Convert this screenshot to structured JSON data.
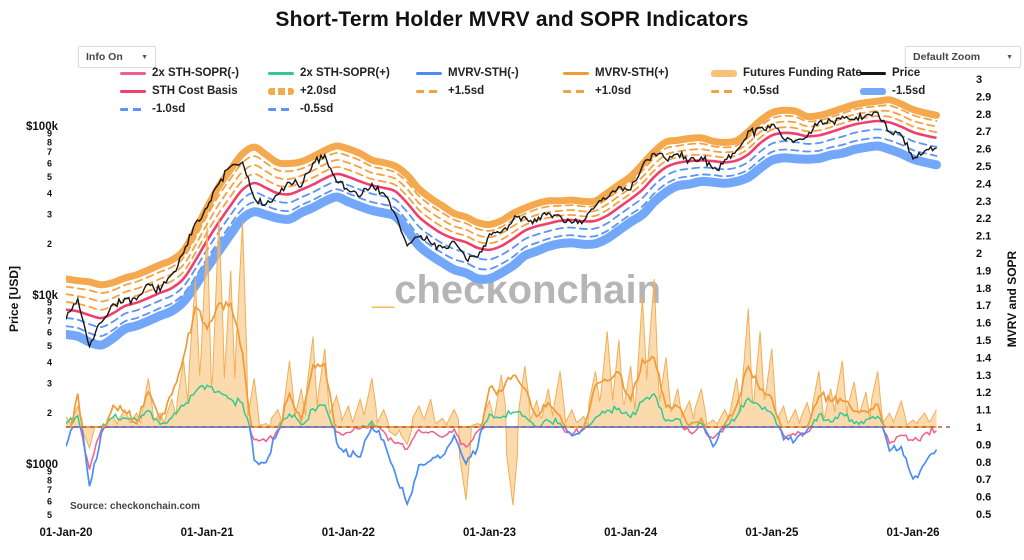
{
  "title": "Short-Term Holder MVRV and SOPR Indicators",
  "controls": {
    "info": {
      "label": "Info On",
      "caret": "▼"
    },
    "zoom": {
      "label": "Default Zoom",
      "caret": "▼"
    }
  },
  "watermark": {
    "underscore": "_",
    "text": "checkonchain"
  },
  "source": "Source: checkonchain.com",
  "colors": {
    "sopr_neg": "#f0608d",
    "sopr_pos": "#36c98e",
    "mvrv_neg": "#4b8df8",
    "mvrv_pos": "#f09a38",
    "funding_fill": "#f8c57d",
    "funding_edge": "#f2ae55",
    "price": "#161616",
    "cost_basis": "#ee3f6f",
    "band_orange_thick": "#f5a94e",
    "band_orange_dash": "#f5a142",
    "band_blue_thick": "#72a7fa",
    "band_blue_dash": "#5b93f7",
    "baseline_dash": "#c05a45",
    "watermark_gray": "#b5b5b5",
    "watermark_orange": "#fbbc55"
  },
  "legend": {
    "rows": [
      [
        {
          "label": "2x STH-SOPR(-)",
          "swatch": "line",
          "color": "#f0608d"
        },
        {
          "label": "2x STH-SOPR(+)",
          "swatch": "line",
          "color": "#36c98e"
        },
        {
          "label": "MVRV-STH(-)",
          "swatch": "line",
          "color": "#4b8df8"
        },
        {
          "label": "MVRV-STH(+)",
          "swatch": "line",
          "color": "#f09a38"
        },
        {
          "label": "Futures Funding Rate",
          "swatch": "thick",
          "color": "#f6c17a"
        },
        {
          "label": "Price",
          "swatch": "line",
          "color": "#161616"
        }
      ],
      [
        {
          "label": "STH Cost Basis",
          "swatch": "line",
          "color": "#ee3f6f"
        },
        {
          "label": "+2.0sd",
          "swatch": "thickdash",
          "color": "#f5a94e"
        },
        {
          "label": "+1.5sd",
          "swatch": "dash",
          "color": "#f5a142"
        },
        {
          "label": "+1.0sd",
          "swatch": "dash",
          "color": "#f5a142"
        },
        {
          "label": "+0.5sd",
          "swatch": "dash",
          "color": "#f5a142"
        },
        {
          "label": "-1.5sd",
          "swatch": "thick",
          "color": "#72a7fa"
        }
      ],
      [
        {
          "label": "-1.0sd",
          "swatch": "dash",
          "color": "#5b93f7"
        },
        {
          "label": "-0.5sd",
          "swatch": "dash",
          "color": "#5b93f7"
        }
      ]
    ]
  },
  "chart_data": {
    "type": "line",
    "x_start": "2020-01",
    "x_step": "1 month",
    "points": 75,
    "x_axis_ticks": [
      "01-Jan-20",
      "01-Jan-21",
      "01-Jan-22",
      "01-Jan-23",
      "01-Jan-24",
      "01-Jan-25",
      "01-Jan-26"
    ],
    "left_axis": {
      "title": "Price [USD]",
      "scale": "log",
      "major_ticks": [
        {
          "label": "$100k",
          "value_kusd": 100
        },
        {
          "label": "$10k",
          "value_kusd": 10
        },
        {
          "label": "$1000",
          "value_kusd": 1
        }
      ],
      "minor_tick_digits": [
        "9",
        "8",
        "7",
        "6",
        "5",
        "4",
        "3",
        "2"
      ]
    },
    "right_axis": {
      "title": "MVRV and SOPR",
      "min": 0.5,
      "max": 3,
      "tick_labels": [
        "3",
        "2.9",
        "2.8",
        "2.7",
        "2.6",
        "2.5",
        "2.4",
        "2.3",
        "2.2",
        "2.1",
        "2",
        "1.9",
        "1.8",
        "1.7",
        "1.6",
        "1.5",
        "1.4",
        "1.3",
        "1.2",
        "1.1",
        "1",
        "0.9",
        "0.8",
        "0.7",
        "0.6",
        "0.5"
      ]
    },
    "series": {
      "price_kusd": [
        7.3,
        9.5,
        5.0,
        7.0,
        8.8,
        9.4,
        9.2,
        11.5,
        10.8,
        13.0,
        17.5,
        27.0,
        33.0,
        46.0,
        58.0,
        60.0,
        37.0,
        34.0,
        39.0,
        47.0,
        43.5,
        61.0,
        67.0,
        47.5,
        42.0,
        39.0,
        45.0,
        39.5,
        30.0,
        19.5,
        22.5,
        20.5,
        19.0,
        20.5,
        16.2,
        16.8,
        22.8,
        23.5,
        28.0,
        29.2,
        27.0,
        30.2,
        29.3,
        26.2,
        27.0,
        34.0,
        37.5,
        43.5,
        42.5,
        58.0,
        70.0,
        63.5,
        68.0,
        62.0,
        65.5,
        55.0,
        62.0,
        70.5,
        92.0,
        96.5,
        102.0,
        85.0,
        83.0,
        85.5,
        104.0,
        106.0,
        112.0,
        110.5,
        114.5,
        121.0,
        91.0,
        88.0,
        64.0,
        70.0,
        74.0
      ],
      "sth_cost_basis_kusd": [
        8.2,
        8.0,
        7.6,
        7.3,
        7.8,
        8.6,
        9.0,
        9.6,
        10.3,
        11.0,
        12.5,
        16.0,
        21.0,
        27.0,
        34.0,
        42.0,
        46.0,
        43.0,
        40.0,
        39.5,
        42.0,
        45.0,
        49.0,
        52.0,
        50.0,
        47.0,
        44.5,
        43.0,
        41.0,
        35.0,
        29.0,
        25.5,
        23.0,
        21.5,
        20.5,
        19.0,
        18.5,
        19.5,
        21.5,
        24.0,
        25.5,
        26.5,
        27.5,
        27.8,
        27.3,
        27.5,
        29.5,
        33.0,
        37.0,
        42.0,
        50.0,
        57.0,
        60.5,
        62.0,
        62.5,
        62.0,
        61.0,
        62.5,
        68.0,
        79.0,
        88.0,
        91.0,
        90.0,
        87.0,
        88.0,
        92.0,
        97.0,
        102.0,
        105.0,
        107.0,
        105.0,
        99.0,
        92.0,
        88.0,
        85.0
      ],
      "sd_band_step_up": [
        1.11,
        1.11,
        1.12,
        1.12,
        1.11,
        1.1,
        1.1,
        1.1,
        1.1,
        1.1,
        1.1,
        1.11,
        1.12,
        1.13,
        1.13,
        1.13,
        1.13,
        1.12,
        1.11,
        1.11,
        1.1,
        1.1,
        1.1,
        1.1,
        1.1,
        1.1,
        1.09,
        1.09,
        1.09,
        1.1,
        1.1,
        1.1,
        1.1,
        1.09,
        1.09,
        1.09,
        1.09,
        1.09,
        1.09,
        1.08,
        1.08,
        1.08,
        1.07,
        1.07,
        1.07,
        1.07,
        1.08,
        1.08,
        1.08,
        1.09,
        1.09,
        1.09,
        1.08,
        1.08,
        1.08,
        1.07,
        1.07,
        1.07,
        1.08,
        1.08,
        1.08,
        1.08,
        1.08,
        1.07,
        1.07,
        1.07,
        1.07,
        1.07,
        1.07,
        1.07,
        1.08,
        1.08,
        1.08,
        1.08,
        1.08
      ],
      "sd_band_step_down": [
        1.12,
        1.12,
        1.13,
        1.13,
        1.12,
        1.11,
        1.11,
        1.11,
        1.11,
        1.11,
        1.11,
        1.12,
        1.13,
        1.14,
        1.14,
        1.14,
        1.14,
        1.13,
        1.12,
        1.12,
        1.11,
        1.11,
        1.11,
        1.11,
        1.12,
        1.12,
        1.12,
        1.12,
        1.12,
        1.13,
        1.14,
        1.14,
        1.14,
        1.15,
        1.15,
        1.15,
        1.14,
        1.13,
        1.13,
        1.12,
        1.12,
        1.11,
        1.11,
        1.11,
        1.11,
        1.11,
        1.11,
        1.11,
        1.11,
        1.12,
        1.12,
        1.12,
        1.11,
        1.11,
        1.1,
        1.1,
        1.1,
        1.1,
        1.11,
        1.12,
        1.12,
        1.12,
        1.12,
        1.11,
        1.11,
        1.11,
        1.12,
        1.12,
        1.12,
        1.12,
        1.13,
        1.13,
        1.13,
        1.13,
        1.13
      ],
      "sopr_2x": [
        1.02,
        1.06,
        0.76,
        0.99,
        1.06,
        1.05,
        1.04,
        1.1,
        1.01,
        1.06,
        1.12,
        1.2,
        1.24,
        1.2,
        1.16,
        1.13,
        0.93,
        0.92,
        0.98,
        1.08,
        1.01,
        1.1,
        1.12,
        0.97,
        0.97,
        0.99,
        1.03,
        0.97,
        0.91,
        0.87,
        0.99,
        0.97,
        0.94,
        0.99,
        0.88,
        0.97,
        1.07,
        1.06,
        1.09,
        1.06,
        1.0,
        1.04,
        1.02,
        0.96,
        0.99,
        1.06,
        1.09,
        1.11,
        1.05,
        1.15,
        1.19,
        1.03,
        1.05,
        0.97,
        1.02,
        0.93,
        1.0,
        1.06,
        1.17,
        1.12,
        1.08,
        0.95,
        0.96,
        0.97,
        1.07,
        1.03,
        1.08,
        1.02,
        1.04,
        1.06,
        0.91,
        0.95,
        0.92,
        0.96,
        0.98
      ],
      "futures_funding_rate_scaled": [
        1.06,
        1.12,
        0.88,
        1.0,
        1.06,
        1.1,
        1.08,
        1.28,
        1.08,
        1.16,
        1.38,
        1.85,
        2.15,
        2.2,
        1.9,
        2.18,
        1.28,
        1.02,
        1.1,
        1.38,
        1.22,
        1.52,
        1.45,
        1.18,
        1.12,
        1.16,
        1.28,
        1.1,
        0.95,
        0.9,
        1.12,
        1.16,
        1.05,
        1.1,
        0.58,
        1.02,
        1.15,
        1.3,
        0.55,
        1.35,
        1.15,
        1.22,
        1.32,
        1.1,
        1.06,
        1.32,
        1.55,
        1.5,
        1.35,
        1.75,
        1.85,
        1.4,
        1.22,
        1.15,
        1.22,
        1.04,
        1.1,
        1.28,
        1.68,
        1.55,
        1.45,
        1.12,
        1.1,
        1.14,
        1.32,
        1.22,
        1.38,
        1.26,
        1.2,
        1.32,
        1.08,
        1.15,
        1.04,
        1.08,
        1.1
      ]
    },
    "derived": {
      "mvrv_sth": "price_kusd / sth_cost_basis_kusd (plotted vs right axis, split at 1)",
      "sd_bands": "sth_cost_basis × step^k for k = +0.5..+2.0sd and -0.5..-1.5sd"
    }
  }
}
